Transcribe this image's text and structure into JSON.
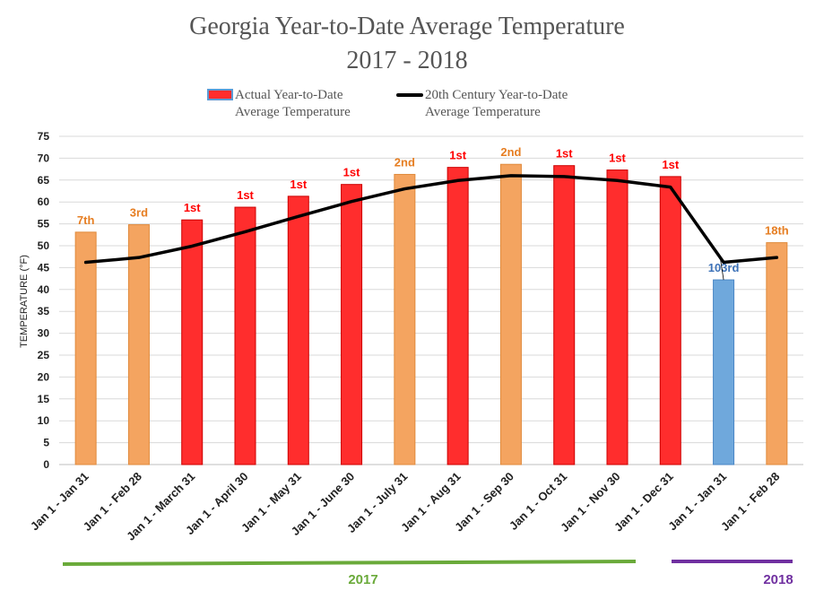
{
  "chart_data": {
    "type": "bar",
    "title_line1": "Georgia Year-to-Date Average Temperature",
    "title_line2": "2017 - 2018",
    "ylabel": "TEMPERATURE (°F)",
    "ylim": [
      0,
      75
    ],
    "yticks": [
      0,
      5,
      10,
      15,
      20,
      25,
      30,
      35,
      40,
      45,
      50,
      55,
      60,
      65,
      70,
      75
    ],
    "grid": true,
    "legend": {
      "bar_line1": "Actual Year-to-Date",
      "bar_line2": "Average Temperature",
      "line_line1": "20th Century Year-to-Date",
      "line_line2": "Average Temperature",
      "position": "top"
    },
    "categories": [
      "Jan 1 - Jan 31",
      "Jan 1 - Feb 28",
      "Jan 1 - March 31",
      "Jan 1 - April 30",
      "Jan 1 - May 31",
      "Jan 1 - June 30",
      "Jan 1 - July 31",
      "Jan 1 - Aug 31",
      "Jan 1 - Sep 30",
      "Jan 1 - Oct 31",
      "Jan 1 - Nov 30",
      "Jan 1 - Dec 31",
      "Jan 1 - Jan 31",
      "Jan 1 - Feb 28"
    ],
    "series": [
      {
        "name": "Actual Year-to-Date Average Temperature",
        "type": "bar",
        "values": [
          53.1,
          54.8,
          55.9,
          58.8,
          61.3,
          64.0,
          66.3,
          67.9,
          68.6,
          68.3,
          67.3,
          65.8,
          42.2,
          50.7
        ],
        "colors": [
          "#f4a460",
          "#f4a460",
          "#ff2d2d",
          "#ff2d2d",
          "#ff2d2d",
          "#ff2d2d",
          "#f4a460",
          "#ff2d2d",
          "#f4a460",
          "#ff2d2d",
          "#ff2d2d",
          "#ff2d2d",
          "#6fa8dc",
          "#f4a460"
        ],
        "ranks": [
          "7th",
          "3rd",
          "1st",
          "1st",
          "1st",
          "1st",
          "2nd",
          "1st",
          "2nd",
          "1st",
          "1st",
          "1st",
          "103rd",
          "18th"
        ],
        "rank_colors": [
          "#e67e22",
          "#e67e22",
          "#ff0000",
          "#ff0000",
          "#ff0000",
          "#ff0000",
          "#e67e22",
          "#ff0000",
          "#e67e22",
          "#ff0000",
          "#ff0000",
          "#ff0000",
          "#3d72b8",
          "#e67e22"
        ]
      },
      {
        "name": "20th Century Year-to-Date Average Temperature",
        "type": "line",
        "values": [
          46.2,
          47.3,
          49.9,
          53.2,
          56.7,
          60.1,
          63.0,
          64.9,
          66.0,
          65.8,
          64.9,
          63.4,
          46.2,
          47.3
        ]
      }
    ],
    "year_groups": [
      {
        "label": "2017",
        "color": "#6aaa3a"
      },
      {
        "label": "2018",
        "color": "#7030a0"
      }
    ]
  }
}
